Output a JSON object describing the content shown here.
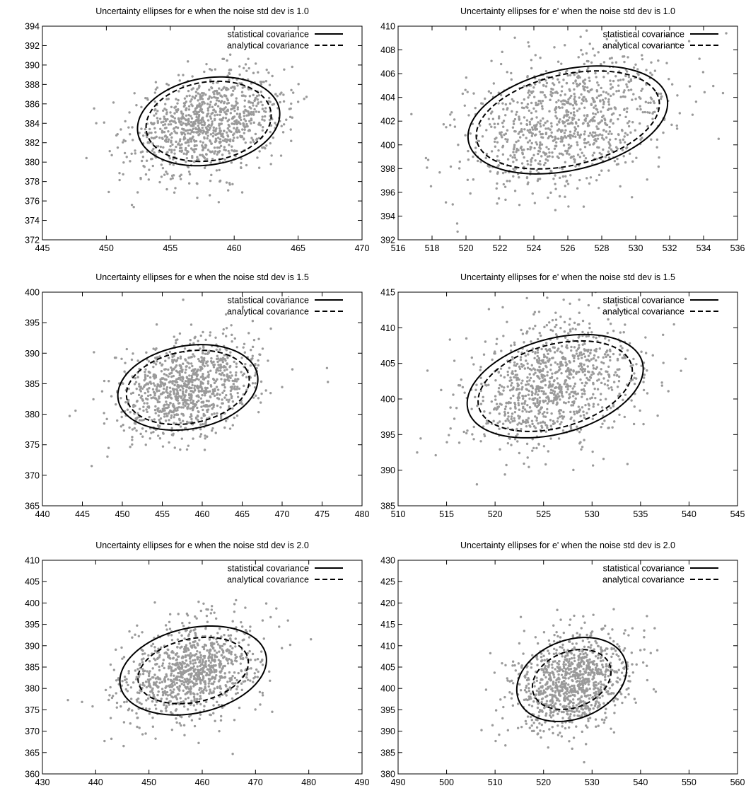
{
  "chart_data": [
    {
      "type": "scatter",
      "title": "Uncertainty ellipses for e when the noise std dev is 1.0",
      "xlim": [
        445,
        470
      ],
      "ylim": [
        372,
        394
      ],
      "xticks": [
        "445",
        "450",
        "455",
        "460",
        "465",
        "470"
      ],
      "yticks": [
        "372",
        "374",
        "376",
        "378",
        "380",
        "382",
        "384",
        "386",
        "388",
        "390",
        "392",
        "394"
      ],
      "legend": [
        "statistical covariance",
        "analytical covariance"
      ],
      "legend_position": "top-right",
      "grid": false,
      "points": {
        "count": 1000,
        "mean": [
          458,
          384
        ],
        "std": [
          3.0,
          2.6
        ],
        "correlation": 0.3,
        "color": "#9a9a9a"
      },
      "series": [
        {
          "name": "statistical covariance",
          "style": "solid",
          "center": [
            458,
            384.2
          ],
          "semi_axes": [
            5.7,
            4.4
          ],
          "angle_deg": 20
        },
        {
          "name": "analytical covariance",
          "style": "dashed",
          "center": [
            458,
            384.2
          ],
          "semi_axes": [
            5.0,
            4.0
          ],
          "angle_deg": 20
        }
      ]
    },
    {
      "type": "scatter",
      "title": "Uncertainty ellipses for e' when the noise std dev is 1.0",
      "xlim": [
        516,
        536
      ],
      "ylim": [
        392,
        410
      ],
      "xticks": [
        "516",
        "518",
        "520",
        "522",
        "524",
        "526",
        "528",
        "530",
        "532",
        "534",
        "536"
      ],
      "yticks": [
        "392",
        "394",
        "396",
        "398",
        "400",
        "402",
        "404",
        "406",
        "408",
        "410"
      ],
      "legend": [
        "statistical covariance",
        "analytical covariance"
      ],
      "legend_position": "top-right",
      "grid": false,
      "points": {
        "count": 1000,
        "mean": [
          526,
          402
        ],
        "std": [
          3.0,
          3.0
        ],
        "correlation": 0.3,
        "color": "#9a9a9a"
      },
      "series": [
        {
          "name": "statistical covariance",
          "style": "solid",
          "center": [
            526,
            402.1
          ],
          "semi_axes": [
            6.2,
            4.1
          ],
          "angle_deg": 25
        },
        {
          "name": "analytical covariance",
          "style": "dashed",
          "center": [
            526,
            402.1
          ],
          "semi_axes": [
            5.7,
            3.7
          ],
          "angle_deg": 25
        }
      ]
    },
    {
      "type": "scatter",
      "title": "Uncertainty ellipses for e when the noise std dev is 1.5",
      "xlim": [
        440,
        480
      ],
      "ylim": [
        365,
        400
      ],
      "xticks": [
        "440",
        "445",
        "450",
        "455",
        "460",
        "465",
        "470",
        "475",
        "480"
      ],
      "yticks": [
        "365",
        "370",
        "375",
        "380",
        "385",
        "390",
        "395",
        "400"
      ],
      "legend": [
        "statistical covariance",
        "analytical covariance"
      ],
      "legend_position": "top-right",
      "grid": false,
      "points": {
        "count": 1000,
        "mean": [
          458,
          384
        ],
        "std": [
          4.5,
          4.0
        ],
        "correlation": 0.3,
        "color": "#9a9a9a"
      },
      "series": [
        {
          "name": "statistical covariance",
          "style": "solid",
          "center": [
            458.2,
            384.4
          ],
          "semi_axes": [
            9.0,
            6.7
          ],
          "angle_deg": 20
        },
        {
          "name": "analytical covariance",
          "style": "dashed",
          "center": [
            458.2,
            384.4
          ],
          "semi_axes": [
            7.9,
            5.8
          ],
          "angle_deg": 20
        }
      ]
    },
    {
      "type": "scatter",
      "title": "Uncertainty ellipses for e' when the noise std dev is 1.5",
      "xlim": [
        510,
        545
      ],
      "ylim": [
        385,
        415
      ],
      "xticks": [
        "510",
        "515",
        "520",
        "525",
        "530",
        "535",
        "540",
        "545"
      ],
      "yticks": [
        "385",
        "390",
        "395",
        "400",
        "405",
        "410",
        "415"
      ],
      "legend": [
        "statistical covariance",
        "analytical covariance"
      ],
      "legend_position": "top-right",
      "grid": false,
      "points": {
        "count": 1000,
        "mean": [
          526,
          402
        ],
        "std": [
          4.5,
          4.5
        ],
        "correlation": 0.3,
        "color": "#9a9a9a"
      },
      "series": [
        {
          "name": "statistical covariance",
          "style": "solid",
          "center": [
            526.2,
            401.8
          ],
          "semi_axes": [
            9.7,
            6.4
          ],
          "angle_deg": 28
        },
        {
          "name": "analytical covariance",
          "style": "dashed",
          "center": [
            526.2,
            401.8
          ],
          "semi_axes": [
            8.5,
            5.6
          ],
          "angle_deg": 28
        }
      ]
    },
    {
      "type": "scatter",
      "title": "Uncertainty ellipses for e when the noise std dev is 2.0",
      "xlim": [
        430,
        490
      ],
      "ylim": [
        360,
        410
      ],
      "xticks": [
        "430",
        "440",
        "450",
        "460",
        "470",
        "480",
        "490"
      ],
      "yticks": [
        "360",
        "365",
        "370",
        "375",
        "380",
        "385",
        "390",
        "395",
        "400",
        "405",
        "410"
      ],
      "legend": [
        "statistical covariance",
        "analytical covariance"
      ],
      "legend_position": "top-right",
      "grid": false,
      "points": {
        "count": 1000,
        "mean": [
          458,
          384
        ],
        "std": [
          6.5,
          6.0
        ],
        "correlation": 0.3,
        "color": "#9a9a9a"
      },
      "series": [
        {
          "name": "statistical covariance",
          "style": "solid",
          "center": [
            458.3,
            384.2
          ],
          "semi_axes": [
            14.2,
            9.8
          ],
          "angle_deg": 20
        },
        {
          "name": "analytical covariance",
          "style": "dashed",
          "center": [
            458.3,
            384.2
          ],
          "semi_axes": [
            10.7,
            7.3
          ],
          "angle_deg": 20
        }
      ]
    },
    {
      "type": "scatter",
      "title": "Uncertainty ellipses for e' when the noise std dev is 2.0",
      "xlim": [
        490,
        560
      ],
      "ylim": [
        380,
        430
      ],
      "xticks": [
        "490",
        "500",
        "510",
        "520",
        "530",
        "540",
        "550",
        "560"
      ],
      "yticks": [
        "380",
        "385",
        "390",
        "395",
        "400",
        "405",
        "410",
        "415",
        "420",
        "425",
        "430"
      ],
      "legend": [
        "statistical covariance",
        "analytical covariance"
      ],
      "legend_position": "top-right",
      "grid": false,
      "points": {
        "count": 1000,
        "mean": [
          526,
          402
        ],
        "std": [
          6.0,
          6.0
        ],
        "correlation": 0.3,
        "color": "#9a9a9a"
      },
      "series": [
        {
          "name": "statistical covariance",
          "style": "solid",
          "center": [
            525.8,
            402.1
          ],
          "semi_axes": [
            12.0,
            9.0
          ],
          "angle_deg": 30
        },
        {
          "name": "analytical covariance",
          "style": "dashed",
          "center": [
            525.8,
            402.1
          ],
          "semi_axes": [
            8.6,
            6.4
          ],
          "angle_deg": 30
        }
      ]
    }
  ]
}
